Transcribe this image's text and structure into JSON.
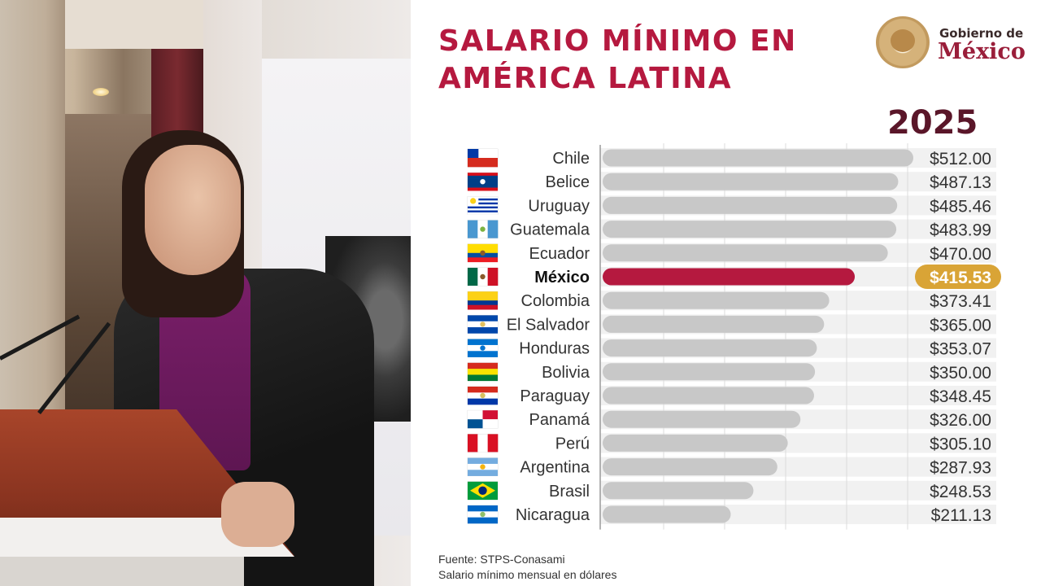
{
  "title": "SALARIO MÍNIMO EN AMÉRICA LATINA",
  "logo": {
    "line1": "Gobierno de",
    "line2": "México",
    "seal_icon": "coat-of-arms-seal"
  },
  "year": "2025",
  "chart_data": {
    "type": "bar",
    "orientation": "horizontal",
    "title": "SALARIO MÍNIMO EN AMÉRICA LATINA",
    "subtitle": "2025",
    "categories": [
      "Chile",
      "Belice",
      "Uruguay",
      "Guatemala",
      "Ecuador",
      "México",
      "Colombia",
      "El Salvador",
      "Honduras",
      "Bolivia",
      "Paraguay",
      "Panamá",
      "Perú",
      "Argentina",
      "Brasil",
      "Nicaragua"
    ],
    "values": [
      512.0,
      487.13,
      485.46,
      483.99,
      470.0,
      415.53,
      373.41,
      365.0,
      353.07,
      350.0,
      348.45,
      326.0,
      305.1,
      287.93,
      248.53,
      211.13
    ],
    "value_labels": [
      "$512.00",
      "$487.13",
      "$485.46",
      "$483.99",
      "$470.00",
      "$415.53",
      "$373.41",
      "$365.00",
      "$353.07",
      "$350.00",
      "$348.45",
      "$326.00",
      "$305.10",
      "$287.93",
      "$248.53",
      "$211.13"
    ],
    "highlight": "México",
    "xlim": [
      0,
      512
    ],
    "grid": true,
    "colors": {
      "bar": "#c8c8c8",
      "highlight_bar": "#b5193f",
      "highlight_label_bg": "#d9a436",
      "row_band": "#f1f1f1"
    }
  },
  "flags": [
    {
      "country": "Chile",
      "stripes": [
        "#ffffff",
        "#d52b1e"
      ],
      "dir": "h",
      "canton": "#0039a6"
    },
    {
      "country": "Belice",
      "stripes": [
        "#d90f19",
        "#003f87",
        "#003f87",
        "#003f87",
        "#003f87",
        "#d90f19"
      ],
      "dir": "h",
      "emblem": "#ffffff"
    },
    {
      "country": "Uruguay",
      "stripes": [
        "#ffffff",
        "#0038a8",
        "#ffffff",
        "#0038a8",
        "#ffffff",
        "#0038a8",
        "#ffffff",
        "#0038a8",
        "#ffffff"
      ],
      "dir": "h",
      "canton": "#ffffff",
      "sun": "#fcd116"
    },
    {
      "country": "Guatemala",
      "stripes": [
        "#4997d0",
        "#ffffff",
        "#4997d0"
      ],
      "dir": "v",
      "emblem": "#7cb342"
    },
    {
      "country": "Ecuador",
      "stripes": [
        "#ffdd00",
        "#ffdd00",
        "#034ea2",
        "#ed1c24"
      ],
      "dir": "h",
      "emblem": "#8b5a2b"
    },
    {
      "country": "México",
      "stripes": [
        "#006847",
        "#ffffff",
        "#ce1126"
      ],
      "dir": "v",
      "emblem": "#8b5a2b"
    },
    {
      "country": "Colombia",
      "stripes": [
        "#fcd116",
        "#fcd116",
        "#003893",
        "#ce1126"
      ],
      "dir": "h"
    },
    {
      "country": "El Salvador",
      "stripes": [
        "#0047ab",
        "#ffffff",
        "#0047ab"
      ],
      "dir": "h",
      "emblem": "#e0c060"
    },
    {
      "country": "Honduras",
      "stripes": [
        "#0073cf",
        "#ffffff",
        "#0073cf"
      ],
      "dir": "h",
      "emblem": "#0073cf"
    },
    {
      "country": "Bolivia",
      "stripes": [
        "#d52b1e",
        "#f9e300",
        "#007934"
      ],
      "dir": "h"
    },
    {
      "country": "Paraguay",
      "stripes": [
        "#d52b1e",
        "#ffffff",
        "#0038a8"
      ],
      "dir": "h",
      "emblem": "#d8c060"
    },
    {
      "country": "Panamá",
      "quarters": [
        "#ffffff",
        "#d21034",
        "#005293",
        "#ffffff"
      ]
    },
    {
      "country": "Perú",
      "stripes": [
        "#d91023",
        "#ffffff",
        "#d91023"
      ],
      "dir": "v"
    },
    {
      "country": "Argentina",
      "stripes": [
        "#74acdf",
        "#ffffff",
        "#74acdf"
      ],
      "dir": "h",
      "emblem": "#f6b40e"
    },
    {
      "country": "Brasil",
      "stripes": [
        "#009c3b"
      ],
      "dir": "h",
      "diamond": "#ffdf00",
      "globe": "#002776"
    },
    {
      "country": "Nicaragua",
      "stripes": [
        "#0067c6",
        "#ffffff",
        "#0067c6"
      ],
      "dir": "h",
      "emblem": "#8fc06a"
    }
  ],
  "footer": {
    "source": "Fuente: STPS-Conasami",
    "note": "Salario mínimo mensual en dólares"
  }
}
